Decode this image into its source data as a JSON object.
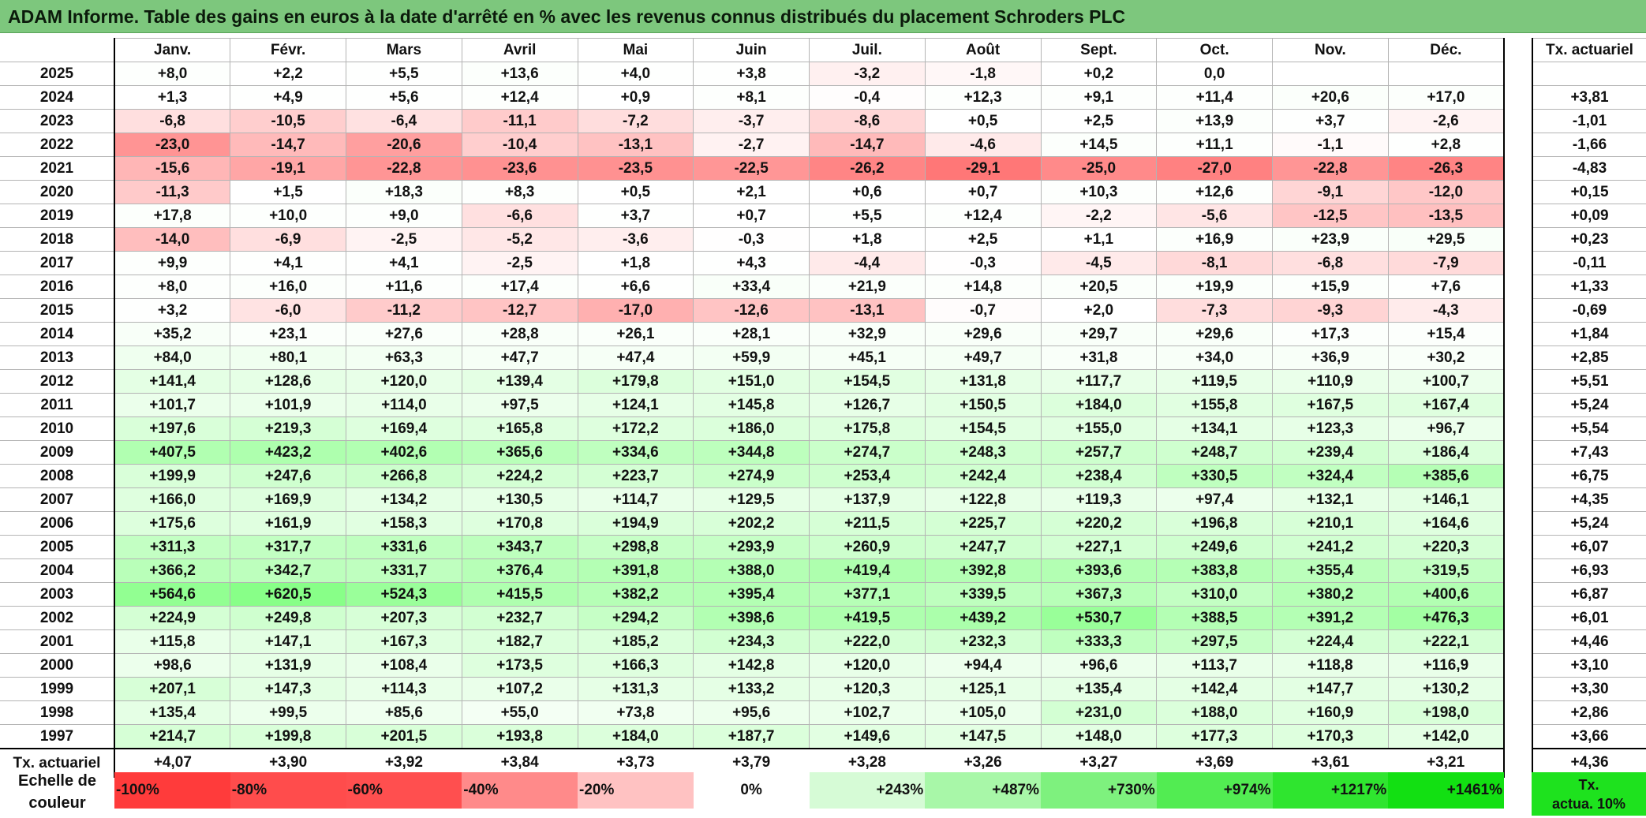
{
  "title": "ADAM Informe. Table des gains en euros à la date d'arrêté en % avec les revenus connus distribués du placement Schroders PLC",
  "months": [
    "Janv.",
    "Févr.",
    "Mars",
    "Avril",
    "Mai",
    "Juin",
    "Juil.",
    "Août",
    "Sept.",
    "Oct.",
    "Nov.",
    "Déc."
  ],
  "tx_header": "Tx. actuariel",
  "rows": [
    {
      "year": "2025",
      "values": [
        "+8,0",
        "+2,2",
        "+5,5",
        "+13,6",
        "+4,0",
        "+3,8",
        "-3,2",
        "-1,8",
        "+0,2",
        "0,0",
        "",
        ""
      ],
      "tx": ""
    },
    {
      "year": "2024",
      "values": [
        "+1,3",
        "+4,9",
        "+5,6",
        "+12,4",
        "+0,9",
        "+8,1",
        "-0,4",
        "+12,3",
        "+9,1",
        "+11,4",
        "+20,6",
        "+17,0"
      ],
      "tx": "+3,81"
    },
    {
      "year": "2023",
      "values": [
        "-6,8",
        "-10,5",
        "-6,4",
        "-11,1",
        "-7,2",
        "-3,7",
        "-8,6",
        "+0,5",
        "+2,5",
        "+13,9",
        "+3,7",
        "-2,6"
      ],
      "tx": "-1,01"
    },
    {
      "year": "2022",
      "values": [
        "-23,0",
        "-14,7",
        "-20,6",
        "-10,4",
        "-13,1",
        "-2,7",
        "-14,7",
        "-4,6",
        "+14,5",
        "+11,1",
        "-1,1",
        "+2,8"
      ],
      "tx": "-1,66"
    },
    {
      "year": "2021",
      "values": [
        "-15,6",
        "-19,1",
        "-22,8",
        "-23,6",
        "-23,5",
        "-22,5",
        "-26,2",
        "-29,1",
        "-25,0",
        "-27,0",
        "-22,8",
        "-26,3"
      ],
      "tx": "-4,83"
    },
    {
      "year": "2020",
      "values": [
        "-11,3",
        "+1,5",
        "+18,3",
        "+8,3",
        "+0,5",
        "+2,1",
        "+0,6",
        "+0,7",
        "+10,3",
        "+12,6",
        "-9,1",
        "-12,0"
      ],
      "tx": "+0,15"
    },
    {
      "year": "2019",
      "values": [
        "+17,8",
        "+10,0",
        "+9,0",
        "-6,6",
        "+3,7",
        "+0,7",
        "+5,5",
        "+12,4",
        "-2,2",
        "-5,6",
        "-12,5",
        "-13,5"
      ],
      "tx": "+0,09"
    },
    {
      "year": "2018",
      "values": [
        "-14,0",
        "-6,9",
        "-2,5",
        "-5,2",
        "-3,6",
        "-0,3",
        "+1,8",
        "+2,5",
        "+1,1",
        "+16,9",
        "+23,9",
        "+29,5"
      ],
      "tx": "+0,23"
    },
    {
      "year": "2017",
      "values": [
        "+9,9",
        "+4,1",
        "+4,1",
        "-2,5",
        "+1,8",
        "+4,3",
        "-4,4",
        "-0,3",
        "-4,5",
        "-8,1",
        "-6,8",
        "-7,9"
      ],
      "tx": "-0,11"
    },
    {
      "year": "2016",
      "values": [
        "+8,0",
        "+16,0",
        "+11,6",
        "+17,4",
        "+6,6",
        "+33,4",
        "+21,9",
        "+14,8",
        "+20,5",
        "+19,9",
        "+15,9",
        "+7,6"
      ],
      "tx": "+1,33"
    },
    {
      "year": "2015",
      "values": [
        "+3,2",
        "-6,0",
        "-11,2",
        "-12,7",
        "-17,0",
        "-12,6",
        "-13,1",
        "-0,7",
        "+2,0",
        "-7,3",
        "-9,3",
        "-4,3"
      ],
      "tx": "-0,69"
    },
    {
      "year": "2014",
      "values": [
        "+35,2",
        "+23,1",
        "+27,6",
        "+28,8",
        "+26,1",
        "+28,1",
        "+32,9",
        "+29,6",
        "+29,7",
        "+29,6",
        "+17,3",
        "+15,4"
      ],
      "tx": "+1,84"
    },
    {
      "year": "2013",
      "values": [
        "+84,0",
        "+80,1",
        "+63,3",
        "+47,7",
        "+47,4",
        "+59,9",
        "+45,1",
        "+49,7",
        "+31,8",
        "+34,0",
        "+36,9",
        "+30,2"
      ],
      "tx": "+2,85"
    },
    {
      "year": "2012",
      "values": [
        "+141,4",
        "+128,6",
        "+120,0",
        "+139,4",
        "+179,8",
        "+151,0",
        "+154,5",
        "+131,8",
        "+117,7",
        "+119,5",
        "+110,9",
        "+100,7"
      ],
      "tx": "+5,51"
    },
    {
      "year": "2011",
      "values": [
        "+101,7",
        "+101,9",
        "+114,0",
        "+97,5",
        "+124,1",
        "+145,8",
        "+126,7",
        "+150,5",
        "+184,0",
        "+155,8",
        "+167,5",
        "+167,4"
      ],
      "tx": "+5,24"
    },
    {
      "year": "2010",
      "values": [
        "+197,6",
        "+219,3",
        "+169,4",
        "+165,8",
        "+172,2",
        "+186,0",
        "+175,8",
        "+154,5",
        "+155,0",
        "+134,1",
        "+123,3",
        "+96,7"
      ],
      "tx": "+5,54"
    },
    {
      "year": "2009",
      "values": [
        "+407,5",
        "+423,2",
        "+402,6",
        "+365,6",
        "+334,6",
        "+344,8",
        "+274,7",
        "+248,3",
        "+257,7",
        "+248,7",
        "+239,4",
        "+186,4"
      ],
      "tx": "+7,43"
    },
    {
      "year": "2008",
      "values": [
        "+199,9",
        "+247,6",
        "+266,8",
        "+224,2",
        "+223,7",
        "+274,9",
        "+253,4",
        "+242,4",
        "+238,4",
        "+330,5",
        "+324,4",
        "+385,6"
      ],
      "tx": "+6,75"
    },
    {
      "year": "2007",
      "values": [
        "+166,0",
        "+169,9",
        "+134,2",
        "+130,5",
        "+114,7",
        "+129,5",
        "+137,9",
        "+122,8",
        "+119,3",
        "+97,4",
        "+132,1",
        "+146,1"
      ],
      "tx": "+4,35"
    },
    {
      "year": "2006",
      "values": [
        "+175,6",
        "+161,9",
        "+158,3",
        "+170,8",
        "+194,9",
        "+202,2",
        "+211,5",
        "+225,7",
        "+220,2",
        "+196,8",
        "+210,1",
        "+164,6"
      ],
      "tx": "+5,24"
    },
    {
      "year": "2005",
      "values": [
        "+311,3",
        "+317,7",
        "+331,6",
        "+343,7",
        "+298,8",
        "+293,9",
        "+260,9",
        "+247,7",
        "+227,1",
        "+249,6",
        "+241,2",
        "+220,3"
      ],
      "tx": "+6,07"
    },
    {
      "year": "2004",
      "values": [
        "+366,2",
        "+342,7",
        "+331,7",
        "+376,4",
        "+391,8",
        "+388,0",
        "+419,4",
        "+392,8",
        "+393,6",
        "+383,8",
        "+355,4",
        "+319,5"
      ],
      "tx": "+6,93"
    },
    {
      "year": "2003",
      "values": [
        "+564,6",
        "+620,5",
        "+524,3",
        "+415,5",
        "+382,2",
        "+395,4",
        "+377,1",
        "+339,5",
        "+367,3",
        "+310,0",
        "+380,2",
        "+400,6"
      ],
      "tx": "+6,87"
    },
    {
      "year": "2002",
      "values": [
        "+224,9",
        "+249,8",
        "+207,3",
        "+232,7",
        "+294,2",
        "+398,6",
        "+419,5",
        "+439,2",
        "+530,7",
        "+388,5",
        "+391,2",
        "+476,3"
      ],
      "tx": "+6,01"
    },
    {
      "year": "2001",
      "values": [
        "+115,8",
        "+147,1",
        "+167,3",
        "+182,7",
        "+185,2",
        "+234,3",
        "+222,0",
        "+232,3",
        "+333,3",
        "+297,5",
        "+224,4",
        "+222,1"
      ],
      "tx": "+4,46"
    },
    {
      "year": "2000",
      "values": [
        "+98,6",
        "+131,9",
        "+108,4",
        "+173,5",
        "+166,3",
        "+142,8",
        "+120,0",
        "+94,4",
        "+96,6",
        "+113,7",
        "+118,8",
        "+116,9"
      ],
      "tx": "+3,10"
    },
    {
      "year": "1999",
      "values": [
        "+207,1",
        "+147,3",
        "+114,3",
        "+107,2",
        "+131,3",
        "+133,2",
        "+120,3",
        "+125,1",
        "+135,4",
        "+142,4",
        "+147,7",
        "+130,2"
      ],
      "tx": "+3,30"
    },
    {
      "year": "1998",
      "values": [
        "+135,4",
        "+99,5",
        "+85,6",
        "+55,0",
        "+73,8",
        "+95,6",
        "+102,7",
        "+105,0",
        "+231,0",
        "+188,0",
        "+160,9",
        "+198,0"
      ],
      "tx": "+2,86"
    },
    {
      "year": "1997",
      "values": [
        "+214,7",
        "+199,8",
        "+201,5",
        "+193,8",
        "+184,0",
        "+187,7",
        "+149,6",
        "+147,5",
        "+148,0",
        "+177,3",
        "+170,3",
        "+142,0"
      ],
      "tx": "+3,66"
    }
  ],
  "avg_row": {
    "label": "Tx. actuariel",
    "values": [
      "+4,07",
      "+3,90",
      "+3,92",
      "+3,84",
      "+3,73",
      "+3,79",
      "+3,28",
      "+3,26",
      "+3,27",
      "+3,69",
      "+3,61",
      "+3,21"
    ],
    "tx": "+4,36"
  },
  "scale": {
    "label_line1": "Echelle de",
    "label_line2": "couleur",
    "cells": [
      {
        "label": "-100%",
        "color": "#ff3b3b",
        "align": "left"
      },
      {
        "label": "-80%",
        "color": "#ff4c4c",
        "align": "left"
      },
      {
        "label": "-60%",
        "color": "#ff4f4f",
        "align": "left"
      },
      {
        "label": "-40%",
        "color": "#ff8a8a",
        "align": "left"
      },
      {
        "label": "-20%",
        "color": "#ffc2c2",
        "align": "left"
      },
      {
        "label": "0%",
        "color": "#ffffff",
        "align": "center"
      },
      {
        "label": "+243%",
        "color": "#d6fbd6",
        "align": "right"
      },
      {
        "label": "+487%",
        "color": "#a8f7a8",
        "align": "right"
      },
      {
        "label": "+730%",
        "color": "#7ef17e",
        "align": "right"
      },
      {
        "label": "+974%",
        "color": "#52ec52",
        "align": "right"
      },
      {
        "label": "+1217%",
        "color": "#2fe52f",
        "align": "right"
      },
      {
        "label": "+1461%",
        "color": "#12e012",
        "align": "right"
      }
    ],
    "tx_line1": "Tx.",
    "tx_line2": "actua. 10%"
  }
}
